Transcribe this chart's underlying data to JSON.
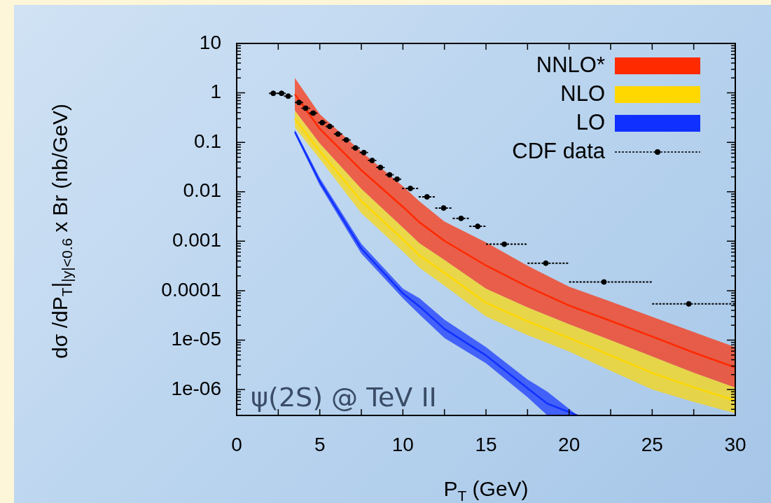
{
  "chart_data": {
    "type": "line",
    "xlabel": "P$_{T}$ (GeV)",
    "ylabel": "dσ /dP$_{T}$|$_{|y|<0.6}$ x Br  (nb/GeV)",
    "annotations": [
      "ψ(2S) @ TeV II"
    ],
    "xlim": [
      0,
      30
    ],
    "ylim": [
      3e-07,
      10
    ],
    "xticks": [
      0,
      {
        "value": 2.5,
        "label": null
      },
      5,
      {
        "value": 7.5,
        "label": null
      },
      10,
      {
        "value": 12.5,
        "label": null
      },
      15,
      {
        "value": 17.5,
        "label": null
      },
      20,
      {
        "value": 22.5,
        "label": null
      },
      25,
      {
        "value": 27.5,
        "label": null
      },
      30
    ],
    "yticks": [
      {
        "value": 1e-06,
        "label": "1e-06"
      },
      {
        "value": 1e-05,
        "label": "1e-05"
      },
      0.0001,
      0.001,
      0.01,
      0.1,
      1,
      10
    ],
    "log": "y",
    "legend": "top right",
    "series": [
      {
        "name": "NNLO*",
        "color": "#ff2a00",
        "x": [
          3.5,
          5,
          7.5,
          10,
          11,
          12.5,
          15,
          17.5,
          20,
          22.5,
          25,
          27.5,
          30
        ],
        "values": [
          0.94,
          0.187,
          0.0273,
          0.00497,
          0.00241,
          0.00102,
          0.000323,
          0.000121,
          5e-05,
          2.45e-05,
          1.18e-05,
          5.6e-06,
          2.8e-06
        ],
        "upper": [
          2.0,
          0.37,
          0.065,
          0.013,
          0.0064,
          0.0025,
          0.00095,
          0.00032,
          0.00012,
          6e-05,
          2.95e-05,
          1.45e-05,
          7.2e-06
        ],
        "lower": [
          0.44,
          0.095,
          0.0115,
          0.0019,
          0.00091,
          0.00042,
          0.00011,
          4.6e-05,
          2.1e-05,
          1e-05,
          4.7e-06,
          2.2e-06,
          1.1e-06
        ]
      },
      {
        "name": "NLO",
        "color": "#ffd800",
        "x": [
          3.5,
          5,
          7.5,
          10,
          11,
          12.5,
          15,
          17.5,
          20,
          22.5,
          25,
          27.5,
          30
        ],
        "values": [
          0.297,
          0.066,
          0.0065,
          0.00109,
          0.000514,
          0.00023,
          5.7e-05,
          2.4e-05,
          1.11e-05,
          4.9e-06,
          2.17e-06,
          1.11e-06,
          6e-07
        ],
        "upper": [
          0.44,
          0.095,
          0.0115,
          0.0019,
          0.00091,
          0.00042,
          0.00011,
          4.6e-05,
          2.1e-05,
          1e-05,
          4.7e-06,
          2.2e-06,
          1.1e-06
        ],
        "lower": [
          0.2,
          0.046,
          0.0037,
          0.00062,
          0.00029,
          0.000126,
          3e-05,
          1.26e-05,
          5.9e-06,
          2.4e-06,
          1e-06,
          5.6e-07,
          3.3e-07
        ]
      },
      {
        "name": "LO",
        "color": "#1030ff",
        "x": [
          3.5,
          5,
          7.5,
          10,
          11,
          12.5,
          15,
          17.5,
          18.7,
          20.5
        ],
        "values": [
          0.163,
          0.016,
          0.000706,
          8.8e-05,
          4.8e-05,
          1.69e-05,
          4.9e-06,
          1.06e-06,
          5.2e-07,
          3e-07
        ],
        "upper": [
          0.18,
          0.019,
          0.00089,
          0.00011,
          7e-05,
          2.6e-05,
          7.2e-06,
          1.6e-06,
          9e-07,
          3e-07
        ],
        "lower": [
          0.148,
          0.0135,
          0.00056,
          7e-05,
          3.3e-05,
          1.1e-05,
          3.4e-06,
          7e-07,
          3e-07,
          3e-07
        ]
      },
      {
        "name": "CDF data",
        "type": "scatter",
        "marker": "circle",
        "color": "#000000",
        "x": [
          2.2,
          2.7,
          3.1,
          3.75,
          4.15,
          4.6,
          5.15,
          5.6,
          6.1,
          6.6,
          7.15,
          7.65,
          8.15,
          8.65,
          9.2,
          9.65,
          10.45,
          11.45,
          12.45,
          13.5,
          14.5,
          16.1,
          18.6,
          22.1,
          27.2
        ],
        "values": [
          0.98,
          0.98,
          0.86,
          0.64,
          0.49,
          0.39,
          0.25,
          0.21,
          0.147,
          0.112,
          0.077,
          0.062,
          0.043,
          0.031,
          0.022,
          0.018,
          0.0117,
          0.0079,
          0.0047,
          0.0029,
          0.002,
          0.00087,
          0.00036,
          0.00015,
          5.4e-05
        ],
        "xerrors": [
          0.25,
          0.25,
          0.25,
          0.25,
          0.25,
          0.25,
          0.25,
          0.25,
          0.25,
          0.25,
          0.25,
          0.25,
          0.25,
          0.25,
          0.25,
          0.25,
          0.5,
          0.5,
          0.5,
          0.5,
          0.5,
          [
            15,
            17.5
          ],
          [
            17.5,
            20
          ],
          [
            20,
            25
          ],
          [
            25,
            30
          ]
        ]
      }
    ]
  }
}
